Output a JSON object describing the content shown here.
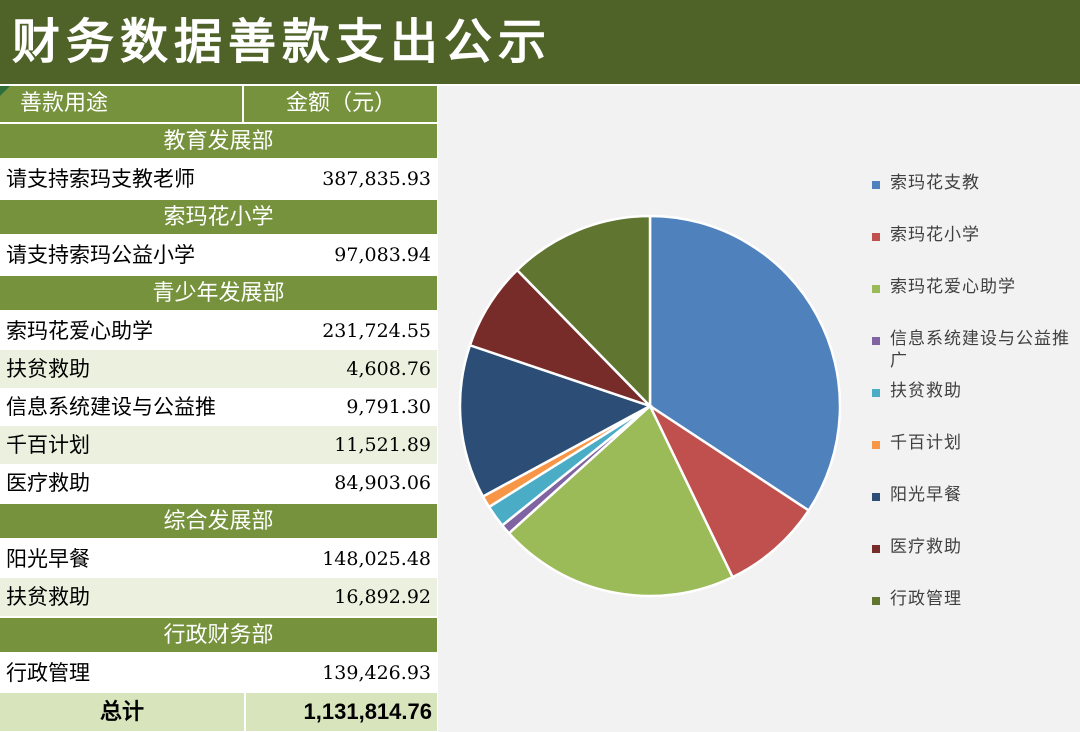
{
  "title": "财务数据善款支出公示",
  "table": {
    "header": {
      "col1": "善款用途",
      "col2": "金额（元）"
    },
    "rows": [
      {
        "type": "dept",
        "label": "教育发展部"
      },
      {
        "type": "item",
        "name": "请支持索玛支教老师",
        "amount": "387,835.93"
      },
      {
        "type": "dept",
        "label": "索玛花小学"
      },
      {
        "type": "item",
        "name": "请支持索玛公益小学",
        "amount": "97,083.94"
      },
      {
        "type": "dept",
        "label": "青少年发展部"
      },
      {
        "type": "item",
        "name": "索玛花爱心助学",
        "amount": "231,724.55"
      },
      {
        "type": "item",
        "name": "扶贫救助",
        "amount": "4,608.76"
      },
      {
        "type": "item",
        "name": "信息系统建设与公益推",
        "amount": "9,791.30"
      },
      {
        "type": "item",
        "name": "千百计划",
        "amount": "11,521.89"
      },
      {
        "type": "item",
        "name": "医疗救助",
        "amount": "84,903.06"
      },
      {
        "type": "dept",
        "label": "综合发展部"
      },
      {
        "type": "item",
        "name": "阳光早餐",
        "amount": "148,025.48"
      },
      {
        "type": "item",
        "name": "扶贫救助",
        "amount": "16,892.92"
      },
      {
        "type": "dept",
        "label": "行政财务部"
      },
      {
        "type": "item",
        "name": "行政管理",
        "amount": "139,426.93"
      }
    ],
    "total": {
      "label": "总计",
      "amount": "1,131,814.76"
    }
  },
  "chart_data": {
    "type": "pie",
    "title": "",
    "series": [
      {
        "name": "索玛花支教",
        "value": 387835.93,
        "color": "#4f81bd"
      },
      {
        "name": "索玛花小学",
        "value": 97083.94,
        "color": "#c0504d"
      },
      {
        "name": "索玛花爱心助学",
        "value": 231724.55,
        "color": "#9bbb59"
      },
      {
        "name": "信息系统建设与公益推广",
        "value": 9791.3,
        "color": "#8064a2"
      },
      {
        "name": "扶贫救助",
        "value": 21501.68,
        "color": "#4bacc6"
      },
      {
        "name": "千百计划",
        "value": 11521.89,
        "color": "#f79646"
      },
      {
        "name": "阳光早餐",
        "value": 148025.48,
        "color": "#2c4d75"
      },
      {
        "name": "医疗救助",
        "value": 84903.06,
        "color": "#772c2a"
      },
      {
        "name": "行政管理",
        "value": 139426.93,
        "color": "#5f7530"
      }
    ],
    "legend_position": "right"
  },
  "colors": {
    "title_bar": "#4f6228",
    "header_fill": "#76923c",
    "alt_row": "#ebf1de",
    "total_row": "#d7e4bc",
    "chart_bg": "#f2f2f2"
  }
}
